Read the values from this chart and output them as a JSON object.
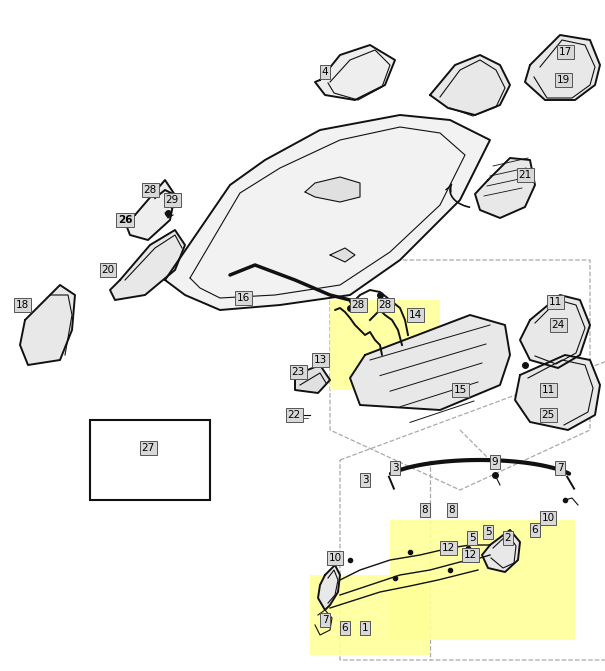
{
  "bg_color": "#ffffff",
  "fig_width": 6.05,
  "fig_height": 6.71,
  "dpi": 100,
  "label_box_color": "#d8d8d8",
  "label_text_color": "#000000",
  "label_fontsize": 7.5,
  "highlight_color": "#ffff99",
  "dashed_color": "#aaaaaa",
  "line_color": "#111111"
}
